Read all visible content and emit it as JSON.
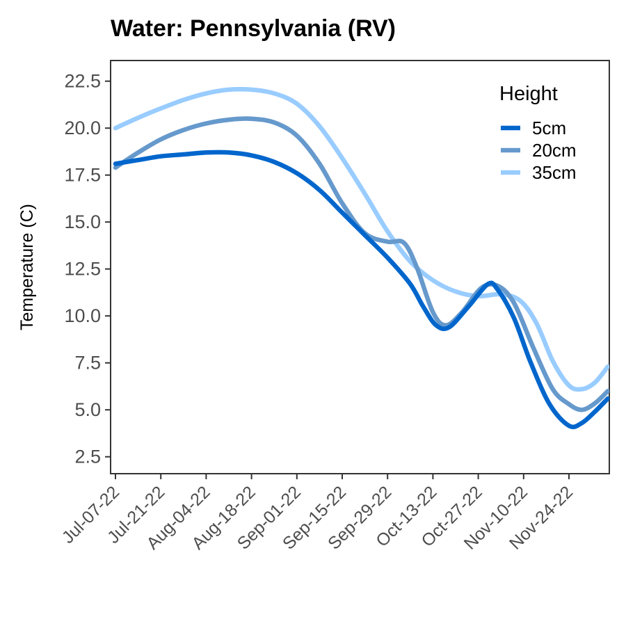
{
  "chart_data": {
    "type": "line",
    "title": "Water: Pennsylvania (RV)",
    "xlabel": "",
    "ylabel": "Temperature (C)",
    "x_axis_type": "date",
    "xlim": [
      "2022-07-07",
      "2022-12-06"
    ],
    "ylim": [
      1.6,
      23.6
    ],
    "y_ticks": [
      2.5,
      5.0,
      7.5,
      10.0,
      12.5,
      15.0,
      17.5,
      20.0,
      22.5
    ],
    "y_tick_labels": [
      "2.5",
      "5.0",
      "7.5",
      "10.0",
      "12.5",
      "15.0",
      "17.5",
      "20.0",
      "22.5"
    ],
    "x_ticks": [
      "2022-07-07",
      "2022-07-21",
      "2022-08-04",
      "2022-08-18",
      "2022-09-01",
      "2022-09-15",
      "2022-09-29",
      "2022-10-13",
      "2022-10-27",
      "2022-11-10",
      "2022-11-24"
    ],
    "x_tick_labels": [
      "Jul-07-22",
      "Jul-21-22",
      "Aug-04-22",
      "Aug-18-22",
      "Sep-01-22",
      "Sep-15-22",
      "Sep-29-22",
      "Oct-13-22",
      "Oct-27-22",
      "Nov-10-22",
      "Nov-24-22"
    ],
    "grid": false,
    "legend": {
      "title": "Height",
      "position": "top-right"
    },
    "series": [
      {
        "name": "5cm",
        "color": "#0066cc",
        "points": [
          [
            "2022-07-07",
            18.1
          ],
          [
            "2022-07-14",
            18.3
          ],
          [
            "2022-07-21",
            18.5
          ],
          [
            "2022-07-28",
            18.6
          ],
          [
            "2022-08-04",
            18.7
          ],
          [
            "2022-08-11",
            18.7
          ],
          [
            "2022-08-18",
            18.55
          ],
          [
            "2022-08-25",
            18.2
          ],
          [
            "2022-09-01",
            17.6
          ],
          [
            "2022-09-08",
            16.7
          ],
          [
            "2022-09-15",
            15.5
          ],
          [
            "2022-09-22",
            14.3
          ],
          [
            "2022-09-29",
            13.1
          ],
          [
            "2022-10-06",
            11.7
          ],
          [
            "2022-10-10",
            10.5
          ],
          [
            "2022-10-14",
            9.5
          ],
          [
            "2022-10-18",
            9.4
          ],
          [
            "2022-10-24",
            10.5
          ],
          [
            "2022-10-30",
            11.7
          ],
          [
            "2022-11-02",
            11.4
          ],
          [
            "2022-11-07",
            9.9
          ],
          [
            "2022-11-12",
            7.6
          ],
          [
            "2022-11-18",
            5.3
          ],
          [
            "2022-11-24",
            4.15
          ],
          [
            "2022-11-28",
            4.3
          ],
          [
            "2022-12-02",
            4.9
          ],
          [
            "2022-12-06",
            5.6
          ]
        ]
      },
      {
        "name": "20cm",
        "color": "#6699cc",
        "points": [
          [
            "2022-07-07",
            17.9
          ],
          [
            "2022-07-14",
            18.7
          ],
          [
            "2022-07-21",
            19.4
          ],
          [
            "2022-07-28",
            19.9
          ],
          [
            "2022-08-04",
            20.25
          ],
          [
            "2022-08-11",
            20.45
          ],
          [
            "2022-08-18",
            20.5
          ],
          [
            "2022-08-25",
            20.3
          ],
          [
            "2022-09-01",
            19.6
          ],
          [
            "2022-09-08",
            18.1
          ],
          [
            "2022-09-15",
            16.0
          ],
          [
            "2022-09-22",
            14.4
          ],
          [
            "2022-09-29",
            13.95
          ],
          [
            "2022-10-04",
            13.9
          ],
          [
            "2022-10-08",
            12.6
          ],
          [
            "2022-10-13",
            10.2
          ],
          [
            "2022-10-17",
            9.5
          ],
          [
            "2022-10-22",
            10.2
          ],
          [
            "2022-10-28",
            11.5
          ],
          [
            "2022-11-02",
            11.6
          ],
          [
            "2022-11-07",
            10.7
          ],
          [
            "2022-11-13",
            8.3
          ],
          [
            "2022-11-19",
            6.1
          ],
          [
            "2022-11-24",
            5.3
          ],
          [
            "2022-11-28",
            5.0
          ],
          [
            "2022-12-02",
            5.35
          ],
          [
            "2022-12-06",
            6.0
          ]
        ]
      },
      {
        "name": "35cm",
        "color": "#99ccff",
        "points": [
          [
            "2022-07-07",
            20.0
          ],
          [
            "2022-07-14",
            20.55
          ],
          [
            "2022-07-21",
            21.05
          ],
          [
            "2022-07-28",
            21.5
          ],
          [
            "2022-08-04",
            21.85
          ],
          [
            "2022-08-11",
            22.05
          ],
          [
            "2022-08-18",
            22.05
          ],
          [
            "2022-08-25",
            21.85
          ],
          [
            "2022-09-01",
            21.3
          ],
          [
            "2022-09-08",
            20.1
          ],
          [
            "2022-09-15",
            18.4
          ],
          [
            "2022-09-22",
            16.5
          ],
          [
            "2022-09-29",
            14.5
          ],
          [
            "2022-10-06",
            12.9
          ],
          [
            "2022-10-13",
            11.9
          ],
          [
            "2022-10-20",
            11.3
          ],
          [
            "2022-10-27",
            11.05
          ],
          [
            "2022-11-03",
            11.15
          ],
          [
            "2022-11-09",
            10.8
          ],
          [
            "2022-11-14",
            9.6
          ],
          [
            "2022-11-19",
            7.6
          ],
          [
            "2022-11-24",
            6.3
          ],
          [
            "2022-11-28",
            6.1
          ],
          [
            "2022-12-02",
            6.45
          ],
          [
            "2022-12-06",
            7.3
          ]
        ]
      }
    ]
  }
}
